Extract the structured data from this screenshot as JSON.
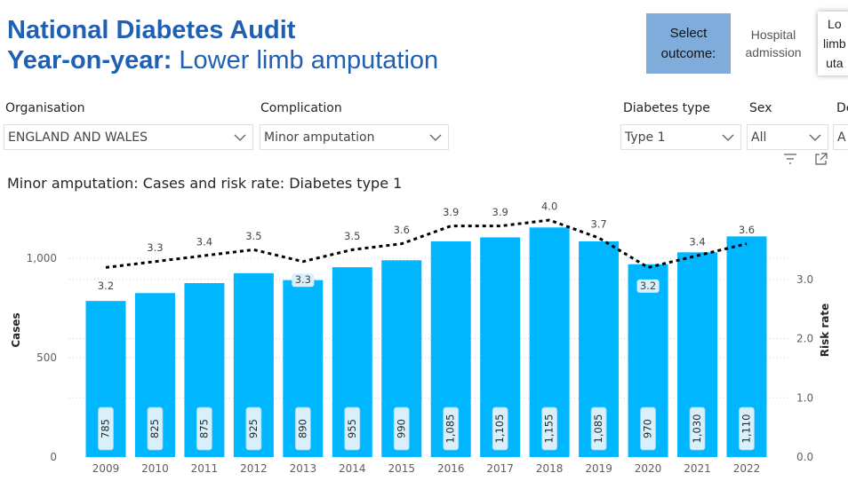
{
  "header": {
    "title_line1": "National Diabetes Audit",
    "title_line2_bold": "Year-on-year:",
    "title_line2_rest": " Lower limb amputation"
  },
  "outcome": {
    "label_line1": "Select",
    "label_line2": "outcome:",
    "hospital_line1": "Hospital",
    "hospital_line2": "admission",
    "lower_line1": "Lo",
    "lower_line2": "limb",
    "lower_line3": "uta"
  },
  "filters": {
    "organisation": {
      "label": "Organisation",
      "value": "ENGLAND AND WALES"
    },
    "complication": {
      "label": "Complication",
      "value": "Minor amputation"
    },
    "diabetes_type": {
      "label": "Diabetes type",
      "value": "Type 1"
    },
    "sex": {
      "label": "Sex",
      "value": "All"
    },
    "deprivation": {
      "label": "De",
      "value": "A"
    }
  },
  "chart_data": {
    "type": "bar",
    "title": "Minor amputation: Cases and risk rate: Diabetes type 1",
    "categories": [
      "2009",
      "2010",
      "2011",
      "2012",
      "2013",
      "2014",
      "2015",
      "2016",
      "2017",
      "2018",
      "2019",
      "2020",
      "2021",
      "2022"
    ],
    "series": [
      {
        "name": "Cases",
        "type": "bar",
        "color": "#00B7FF",
        "values": [
          785,
          825,
          875,
          925,
          890,
          955,
          990,
          1085,
          1105,
          1155,
          1085,
          970,
          1030,
          1110
        ],
        "labels": [
          "785",
          "825",
          "875",
          "925",
          "890",
          "955",
          "990",
          "1,085",
          "1,105",
          "1,155",
          "1,085",
          "970",
          "1,030",
          "1,110"
        ]
      },
      {
        "name": "Risk rate",
        "type": "line",
        "style": "dotted",
        "color": "#000000",
        "values": [
          3.2,
          3.3,
          3.4,
          3.5,
          3.3,
          3.5,
          3.6,
          3.9,
          3.9,
          4.0,
          3.7,
          3.2,
          3.4,
          3.6
        ],
        "labels": [
          "3.2",
          "3.3",
          "3.4",
          "3.5",
          "3.3",
          "3.5",
          "3.6",
          "3.9",
          "3.9",
          "4.0",
          "3.7",
          "3.2",
          "3.4",
          "3.6"
        ]
      }
    ],
    "ylabel": "Cases",
    "y2label": "Risk rate",
    "ylim": [
      0,
      1210
    ],
    "y2lim": [
      0,
      4.06
    ],
    "yticks": [
      0,
      500,
      1000
    ],
    "yticklabels": [
      "0",
      "500",
      "1,000"
    ],
    "y2ticks": [
      0,
      1,
      2,
      3
    ],
    "y2ticklabels": [
      "0.0",
      "1.0",
      "2.0",
      "3.0"
    ],
    "grid": true
  }
}
